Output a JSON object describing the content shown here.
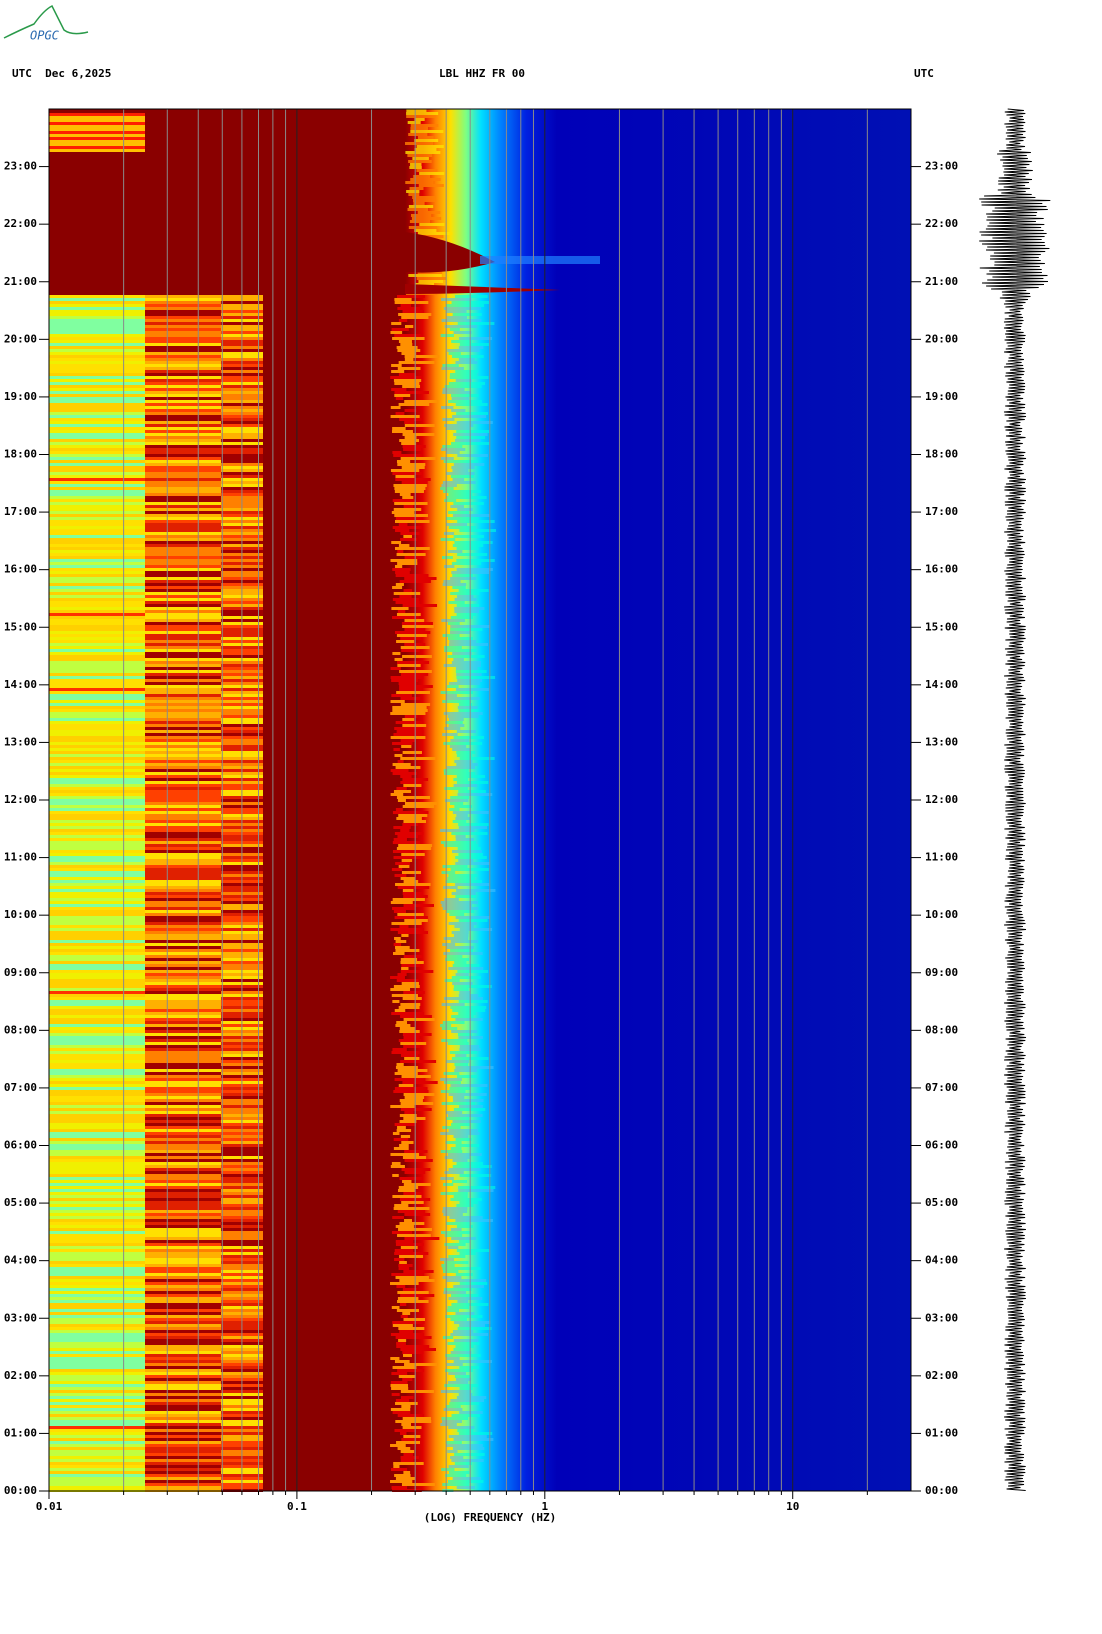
{
  "chart_data": {
    "type": "spectrogram",
    "logo": "OPGC",
    "date_label": "UTC  Dec 6,2025",
    "title": "LBL HHZ FR 00",
    "right_label": "UTC",
    "xlabel": "(LOG) FREQUENCY (HZ)",
    "xscale": "log",
    "xlim": [
      0.01,
      30
    ],
    "xticks": [
      0.01,
      0.1,
      1,
      10
    ],
    "x_minor_ticks": [
      0.02,
      0.03,
      0.04,
      0.05,
      0.06,
      0.07,
      0.08,
      0.09,
      0.2,
      0.3,
      0.4,
      0.5,
      0.6,
      0.7,
      0.8,
      0.9,
      2,
      3,
      4,
      5,
      6,
      7,
      8,
      9,
      20
    ],
    "ylim": [
      0,
      24
    ],
    "yticks": [
      {
        "value": 0,
        "label": "00:00"
      },
      {
        "value": 1,
        "label": "01:00"
      },
      {
        "value": 2,
        "label": "02:00"
      },
      {
        "value": 3,
        "label": "03:00"
      },
      {
        "value": 4,
        "label": "04:00"
      },
      {
        "value": 5,
        "label": "05:00"
      },
      {
        "value": 6,
        "label": "06:00"
      },
      {
        "value": 7,
        "label": "07:00"
      },
      {
        "value": 8,
        "label": "08:00"
      },
      {
        "value": 9,
        "label": "09:00"
      },
      {
        "value": 10,
        "label": "10:00"
      },
      {
        "value": 11,
        "label": "11:00"
      },
      {
        "value": 12,
        "label": "12:00"
      },
      {
        "value": 13,
        "label": "13:00"
      },
      {
        "value": 14,
        "label": "14:00"
      },
      {
        "value": 15,
        "label": "15:00"
      },
      {
        "value": 16,
        "label": "16:00"
      },
      {
        "value": 17,
        "label": "17:00"
      },
      {
        "value": 18,
        "label": "18:00"
      },
      {
        "value": 19,
        "label": "19:00"
      },
      {
        "value": 20,
        "label": "20:00"
      },
      {
        "value": 21,
        "label": "21:00"
      },
      {
        "value": 22,
        "label": "22:00"
      },
      {
        "value": 23,
        "label": "23:00"
      }
    ]
  }
}
